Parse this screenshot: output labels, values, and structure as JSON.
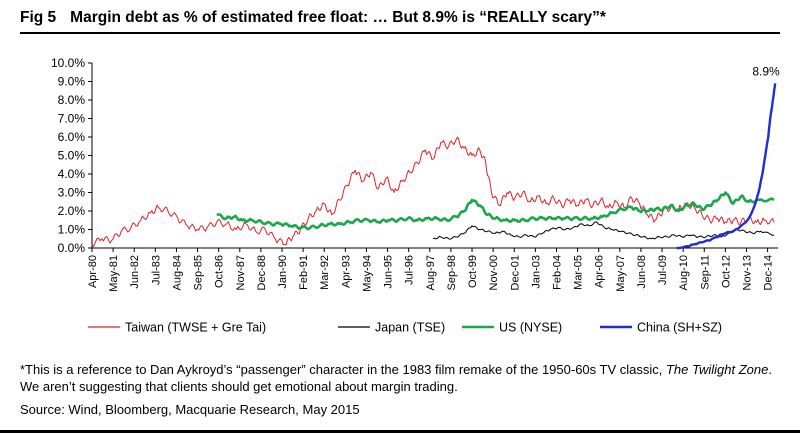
{
  "header": {
    "fig_label": "Fig 5",
    "title": "Margin debt as % of estimated free float: … But 8.9% is “REALLY scary”*"
  },
  "footnote": {
    "part1": "*This is a reference to Dan Aykroyd’s “passenger” character in the 1983 film remake of the 1950-60s TV classic, ",
    "show": "The Twilight Zone",
    "part2": ". We aren’t suggesting that clients should get emotional about margin trading."
  },
  "source": "Source: Wind, Bloomberg, Macquarie Research, May 2015",
  "chart_data": {
    "type": "line",
    "ylim": [
      0,
      10
    ],
    "y_ticks": [
      "10.0%",
      "9.0%",
      "8.0%",
      "7.0%",
      "6.0%",
      "5.0%",
      "4.0%",
      "3.0%",
      "2.0%",
      "1.0%",
      "0.0%"
    ],
    "x_ticks": [
      "Apr-80",
      "May-81",
      "Jun-82",
      "Jul-83",
      "Aug-84",
      "Sep-85",
      "Oct-86",
      "Nov-87",
      "Dec-88",
      "Jan-90",
      "Feb-91",
      "Mar-92",
      "Apr-93",
      "May-94",
      "Jun-95",
      "Jul-96",
      "Aug-97",
      "Sep-98",
      "Oct-99",
      "Nov-00",
      "Dec-01",
      "Jan-03",
      "Feb-04",
      "Mar-05",
      "Apr-06",
      "May-07",
      "Jun-08",
      "Jul-09",
      "Aug-10",
      "Sep-11",
      "Oct-12",
      "Nov-13",
      "Dec-14"
    ],
    "annotation": {
      "text": "8.9%",
      "x": 2015.4,
      "y": 8.9
    },
    "legend_position": "bottom",
    "series": [
      {
        "name": "Taiwan (TWSE + Gre Tai)",
        "color": "#e8202a",
        "points": [
          [
            1980.3,
            0.2
          ],
          [
            1980.8,
            0.5
          ],
          [
            1981.3,
            0.4
          ],
          [
            1981.8,
            0.9
          ],
          [
            1982.3,
            1.1
          ],
          [
            1982.8,
            1.5
          ],
          [
            1983.3,
            1.9
          ],
          [
            1983.7,
            2.2
          ],
          [
            1984.2,
            2.0
          ],
          [
            1984.7,
            1.6
          ],
          [
            1985.2,
            1.2
          ],
          [
            1985.7,
            1.0
          ],
          [
            1986.2,
            1.1
          ],
          [
            1986.7,
            1.4
          ],
          [
            1987.2,
            1.3
          ],
          [
            1987.7,
            1.0
          ],
          [
            1988.2,
            1.3
          ],
          [
            1988.7,
            0.9
          ],
          [
            1989.2,
            1.0
          ],
          [
            1989.7,
            0.5
          ],
          [
            1990.2,
            0.2
          ],
          [
            1990.6,
            0.6
          ],
          [
            1991.0,
            1.0
          ],
          [
            1991.4,
            1.6
          ],
          [
            1991.8,
            2.0
          ],
          [
            1992.2,
            2.4
          ],
          [
            1992.6,
            1.8
          ],
          [
            1993.0,
            2.6
          ],
          [
            1993.4,
            3.4
          ],
          [
            1993.8,
            4.2
          ],
          [
            1994.2,
            3.6
          ],
          [
            1994.6,
            4.1
          ],
          [
            1995.0,
            3.2
          ],
          [
            1995.4,
            3.8
          ],
          [
            1995.8,
            3.0
          ],
          [
            1996.2,
            3.6
          ],
          [
            1996.6,
            4.1
          ],
          [
            1997.0,
            4.6
          ],
          [
            1997.4,
            5.3
          ],
          [
            1997.8,
            4.8
          ],
          [
            1998.2,
            5.7
          ],
          [
            1998.6,
            5.5
          ],
          [
            1999.0,
            5.9
          ],
          [
            1999.4,
            5.4
          ],
          [
            1999.8,
            5.0
          ],
          [
            2000.2,
            5.3
          ],
          [
            2000.5,
            4.6
          ],
          [
            2000.8,
            3.0
          ],
          [
            2001.2,
            2.3
          ],
          [
            2001.6,
            3.0
          ],
          [
            2002.0,
            2.7
          ],
          [
            2002.4,
            3.0
          ],
          [
            2002.8,
            2.5
          ],
          [
            2003.2,
            2.8
          ],
          [
            2003.6,
            2.4
          ],
          [
            2004.0,
            2.7
          ],
          [
            2004.4,
            2.3
          ],
          [
            2004.8,
            2.6
          ],
          [
            2005.2,
            2.3
          ],
          [
            2005.6,
            2.6
          ],
          [
            2006.0,
            2.3
          ],
          [
            2006.4,
            2.6
          ],
          [
            2006.8,
            2.2
          ],
          [
            2007.2,
            2.5
          ],
          [
            2007.6,
            2.2
          ],
          [
            2008.0,
            2.7
          ],
          [
            2008.4,
            2.4
          ],
          [
            2008.8,
            1.8
          ],
          [
            2009.2,
            1.5
          ],
          [
            2009.6,
            2.0
          ],
          [
            2010.0,
            2.2
          ],
          [
            2010.4,
            2.1
          ],
          [
            2010.8,
            2.4
          ],
          [
            2011.2,
            2.2
          ],
          [
            2011.6,
            1.8
          ],
          [
            2012.0,
            1.5
          ],
          [
            2012.4,
            1.6
          ],
          [
            2012.8,
            1.4
          ],
          [
            2013.2,
            1.5
          ],
          [
            2013.6,
            1.4
          ],
          [
            2014.0,
            1.6
          ],
          [
            2014.4,
            1.4
          ],
          [
            2014.8,
            1.5
          ],
          [
            2015.3,
            1.4
          ]
        ]
      },
      {
        "name": "Japan (TSE)",
        "color": "#000000",
        "points": [
          [
            1997.8,
            0.5
          ],
          [
            1998.2,
            0.6
          ],
          [
            1998.6,
            0.5
          ],
          [
            1999.0,
            0.6
          ],
          [
            1999.4,
            0.8
          ],
          [
            1999.8,
            1.2
          ],
          [
            2000.2,
            1.0
          ],
          [
            2000.6,
            0.9
          ],
          [
            2001.0,
            0.8
          ],
          [
            2001.4,
            0.9
          ],
          [
            2001.8,
            0.7
          ],
          [
            2002.2,
            0.6
          ],
          [
            2002.6,
            0.7
          ],
          [
            2003.0,
            0.6
          ],
          [
            2003.4,
            0.8
          ],
          [
            2003.8,
            1.0
          ],
          [
            2004.2,
            1.1
          ],
          [
            2004.6,
            1.0
          ],
          [
            2005.0,
            1.1
          ],
          [
            2005.4,
            1.3
          ],
          [
            2005.8,
            1.2
          ],
          [
            2006.2,
            1.4
          ],
          [
            2006.6,
            1.1
          ],
          [
            2007.0,
            1.0
          ],
          [
            2007.4,
            0.9
          ],
          [
            2007.8,
            0.8
          ],
          [
            2008.2,
            0.7
          ],
          [
            2008.6,
            0.6
          ],
          [
            2009.0,
            0.5
          ],
          [
            2009.4,
            0.6
          ],
          [
            2009.8,
            0.6
          ],
          [
            2010.2,
            0.7
          ],
          [
            2010.6,
            0.6
          ],
          [
            2011.0,
            0.7
          ],
          [
            2011.4,
            0.6
          ],
          [
            2011.8,
            0.6
          ],
          [
            2012.2,
            0.7
          ],
          [
            2012.6,
            0.6
          ],
          [
            2013.0,
            0.8
          ],
          [
            2013.4,
            1.0
          ],
          [
            2013.8,
            0.9
          ],
          [
            2014.2,
            0.8
          ],
          [
            2014.6,
            0.9
          ],
          [
            2015.3,
            0.7
          ]
        ]
      },
      {
        "name": "US (NYSE)",
        "color": "#1aa84a",
        "points": [
          [
            1986.7,
            1.8
          ],
          [
            1987.2,
            1.6
          ],
          [
            1987.6,
            1.7
          ],
          [
            1988.0,
            1.5
          ],
          [
            1988.5,
            1.5
          ],
          [
            1989.0,
            1.4
          ],
          [
            1989.5,
            1.3
          ],
          [
            1990.0,
            1.3
          ],
          [
            1990.5,
            1.2
          ],
          [
            1991.0,
            1.1
          ],
          [
            1991.5,
            1.1
          ],
          [
            1992.0,
            1.2
          ],
          [
            1992.5,
            1.3
          ],
          [
            1993.0,
            1.3
          ],
          [
            1993.5,
            1.4
          ],
          [
            1994.0,
            1.5
          ],
          [
            1994.5,
            1.5
          ],
          [
            1995.0,
            1.4
          ],
          [
            1995.5,
            1.5
          ],
          [
            1996.0,
            1.5
          ],
          [
            1996.5,
            1.6
          ],
          [
            1997.0,
            1.5
          ],
          [
            1997.5,
            1.6
          ],
          [
            1998.0,
            1.6
          ],
          [
            1998.5,
            1.5
          ],
          [
            1999.0,
            1.7
          ],
          [
            1999.4,
            2.0
          ],
          [
            1999.8,
            2.6
          ],
          [
            2000.2,
            2.3
          ],
          [
            2000.6,
            1.8
          ],
          [
            2001.0,
            1.6
          ],
          [
            2001.5,
            1.5
          ],
          [
            2002.0,
            1.5
          ],
          [
            2002.5,
            1.5
          ],
          [
            2003.0,
            1.6
          ],
          [
            2003.5,
            1.6
          ],
          [
            2004.0,
            1.6
          ],
          [
            2004.5,
            1.6
          ],
          [
            2005.0,
            1.6
          ],
          [
            2005.5,
            1.6
          ],
          [
            2006.0,
            1.6
          ],
          [
            2006.5,
            1.7
          ],
          [
            2007.0,
            1.9
          ],
          [
            2007.5,
            2.1
          ],
          [
            2008.0,
            2.2
          ],
          [
            2008.4,
            2.0
          ],
          [
            2008.8,
            2.0
          ],
          [
            2009.2,
            2.1
          ],
          [
            2009.6,
            2.1
          ],
          [
            2010.0,
            2.3
          ],
          [
            2010.4,
            2.0
          ],
          [
            2010.8,
            2.3
          ],
          [
            2011.2,
            2.4
          ],
          [
            2011.6,
            2.1
          ],
          [
            2012.0,
            2.3
          ],
          [
            2012.4,
            2.6
          ],
          [
            2012.8,
            3.0
          ],
          [
            2013.2,
            2.4
          ],
          [
            2013.6,
            2.8
          ],
          [
            2014.0,
            2.5
          ],
          [
            2014.5,
            2.6
          ],
          [
            2015.3,
            2.6
          ]
        ]
      },
      {
        "name": "China (SH+SZ)",
        "color": "#1f2dd6",
        "points": [
          [
            2010.3,
            0.0
          ],
          [
            2010.8,
            0.1
          ],
          [
            2011.2,
            0.2
          ],
          [
            2011.6,
            0.3
          ],
          [
            2012.0,
            0.4
          ],
          [
            2012.4,
            0.6
          ],
          [
            2012.8,
            0.8
          ],
          [
            2013.2,
            0.9
          ],
          [
            2013.6,
            1.2
          ],
          [
            2014.0,
            1.6
          ],
          [
            2014.3,
            2.3
          ],
          [
            2014.5,
            3.0
          ],
          [
            2014.7,
            4.0
          ],
          [
            2014.85,
            5.0
          ],
          [
            2015.0,
            6.0
          ],
          [
            2015.1,
            7.0
          ],
          [
            2015.2,
            7.7
          ],
          [
            2015.3,
            8.5
          ],
          [
            2015.35,
            8.9
          ]
        ]
      }
    ]
  }
}
